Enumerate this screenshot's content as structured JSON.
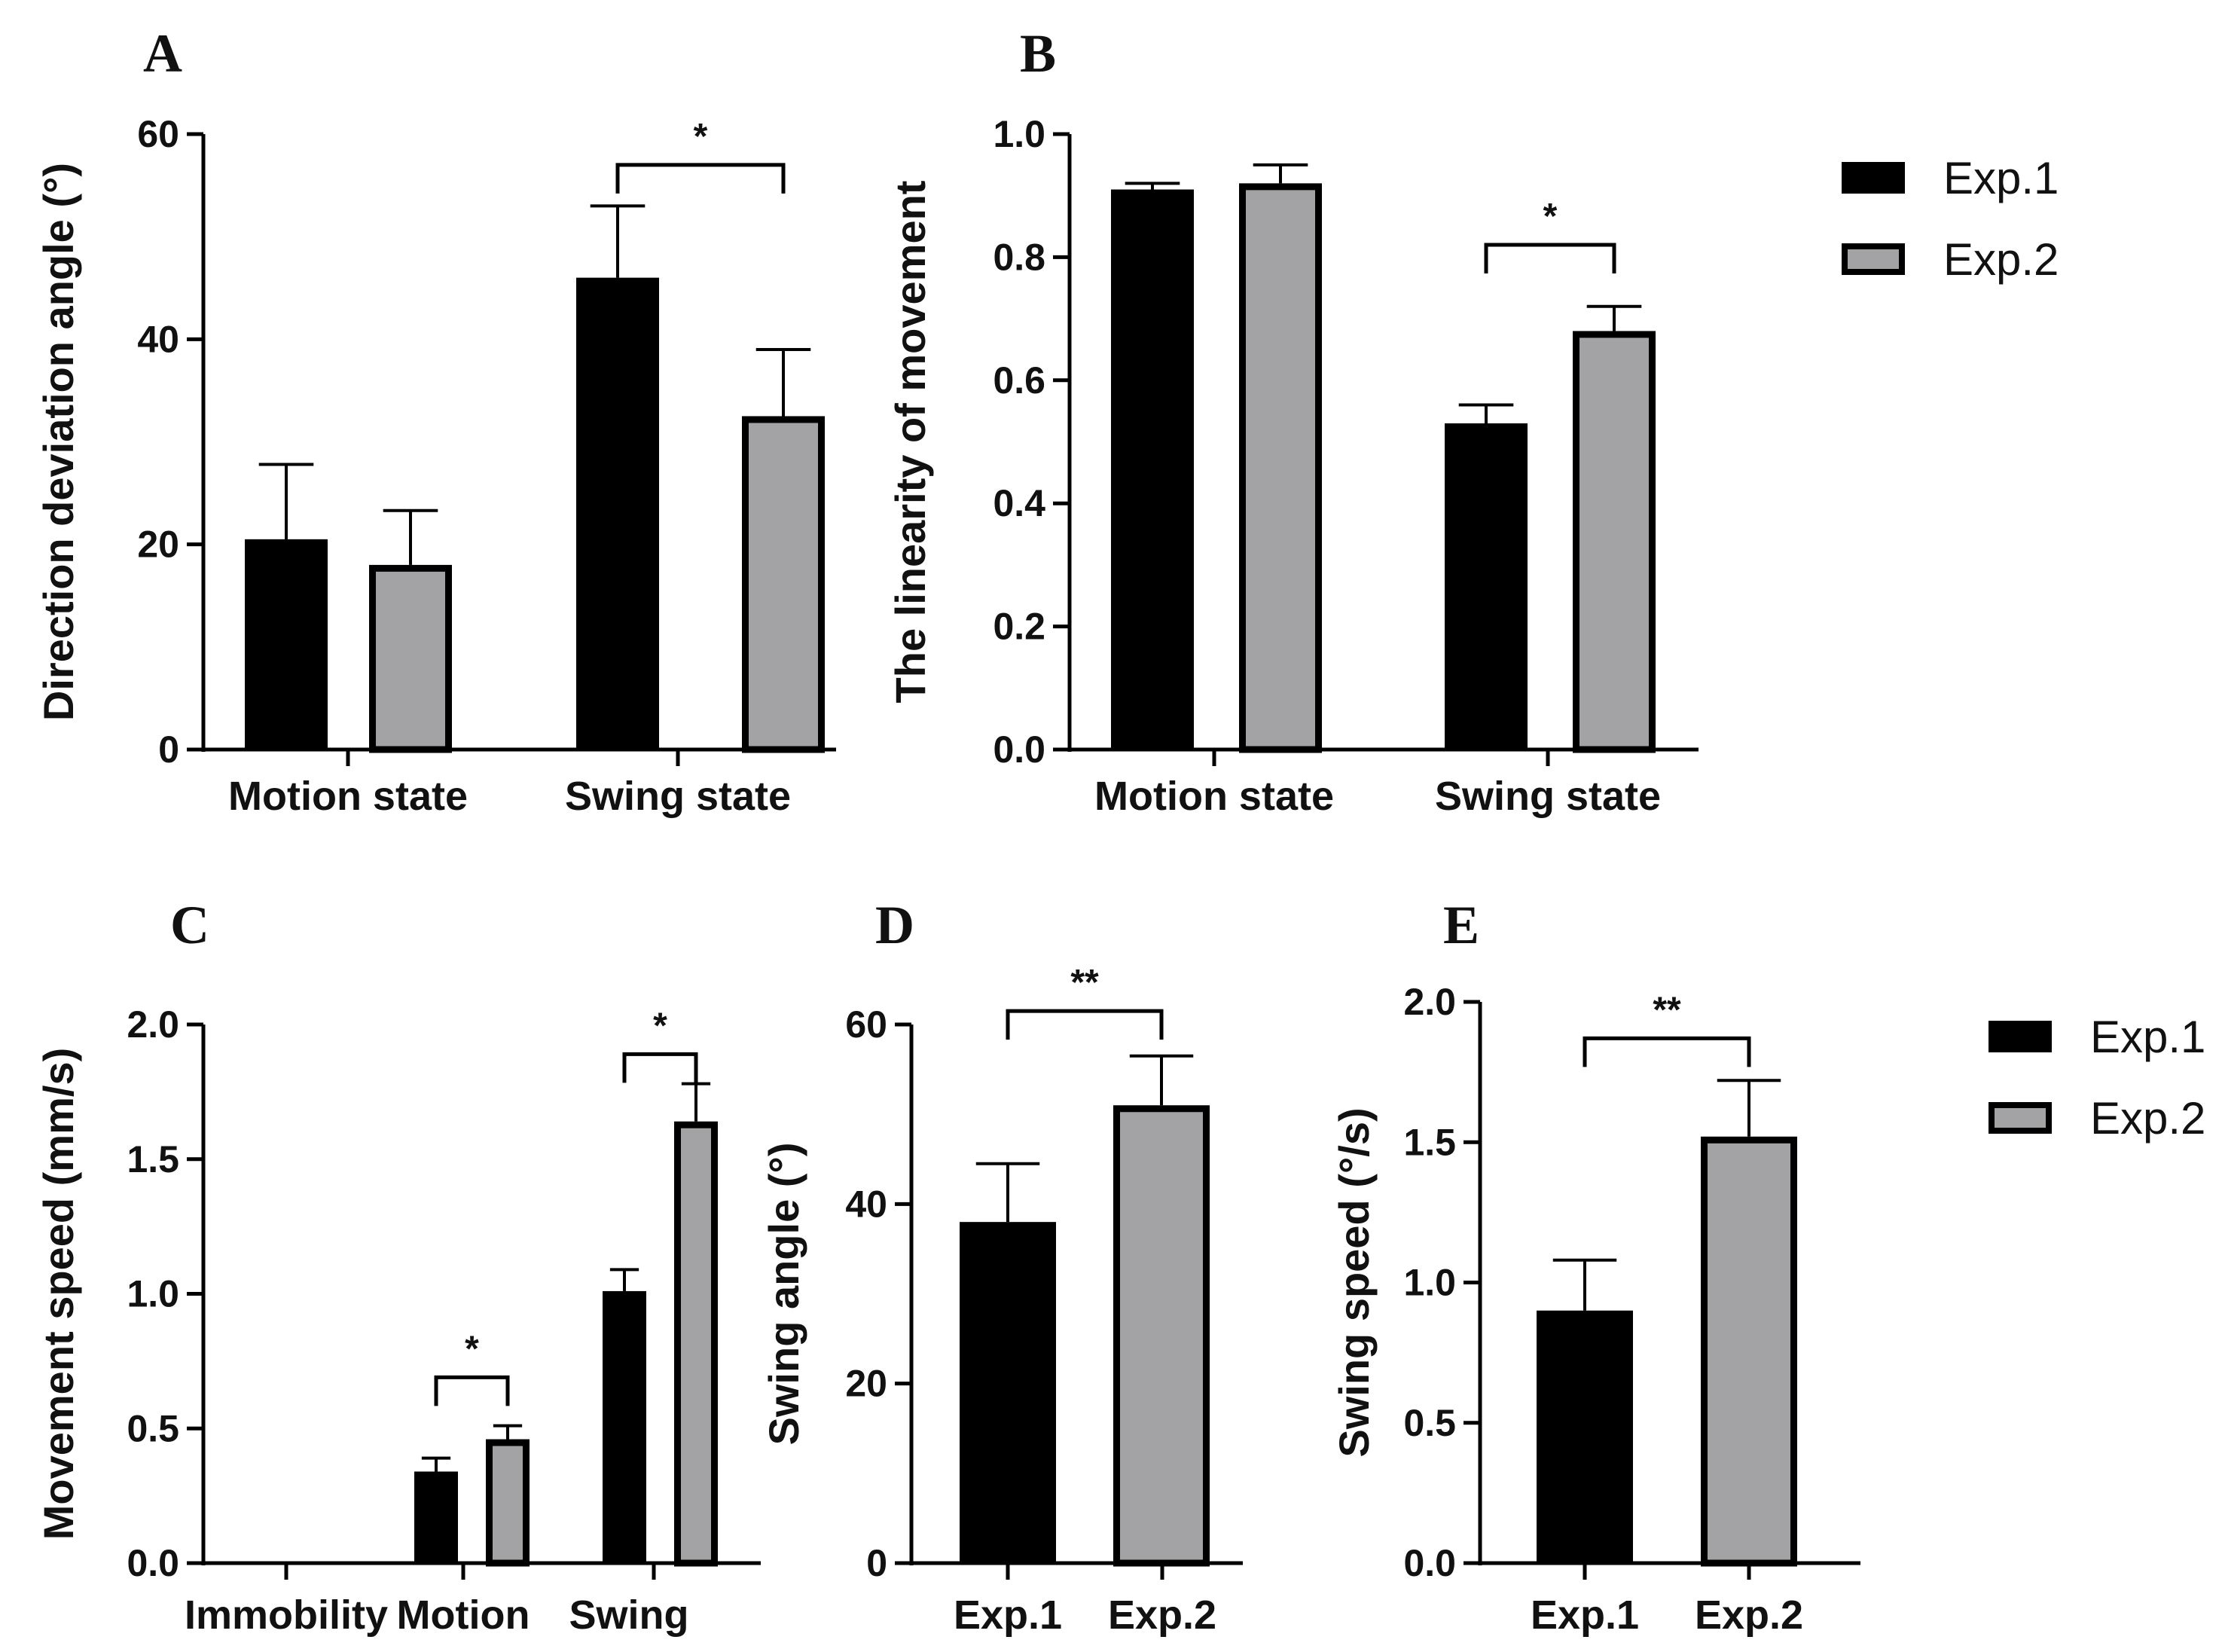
{
  "colors": {
    "exp1": "#000000",
    "exp2": "#a3a3a6",
    "stroke": "#000000"
  },
  "legend": [
    {
      "name": "Exp.1",
      "color_key": "exp1"
    },
    {
      "name": "Exp.2",
      "color_key": "exp2"
    }
  ],
  "chart_data": [
    {
      "id": "A",
      "type": "bar",
      "panel_label": "A",
      "ylabel": "Direction deviation angle (°)",
      "ylim": [
        0,
        60
      ],
      "yticks": [
        0,
        20,
        40,
        60
      ],
      "ytick_labels": [
        "0",
        "20",
        "40",
        "60"
      ],
      "categories": [
        "Motion state",
        "Swing state"
      ],
      "series": [
        {
          "name": "Exp.1",
          "values": [
            20.5,
            46
          ],
          "errors": [
            7.3,
            7
          ]
        },
        {
          "name": "Exp.2",
          "values": [
            18,
            32.5
          ],
          "errors": [
            5.3,
            6.5
          ]
        }
      ],
      "annotations": [
        {
          "text": "*",
          "category_index": 1,
          "level": 57
        }
      ]
    },
    {
      "id": "B",
      "type": "bar",
      "panel_label": "B",
      "ylabel": "The linearity of movement",
      "ylim": [
        0,
        1.0
      ],
      "yticks": [
        0,
        0.2,
        0.4,
        0.6,
        0.8,
        1.0
      ],
      "ytick_labels": [
        "0.0",
        "0.2",
        "0.4",
        "0.6",
        "0.8",
        "1.0"
      ],
      "categories": [
        "Motion state",
        "Swing state"
      ],
      "series": [
        {
          "name": "Exp.1",
          "values": [
            0.91,
            0.53
          ],
          "errors": [
            0.01,
            0.03
          ]
        },
        {
          "name": "Exp.2",
          "values": [
            0.92,
            0.68
          ],
          "errors": [
            0.03,
            0.04
          ]
        }
      ],
      "annotations": [
        {
          "text": "*",
          "category_index": 1,
          "level": 0.82
        }
      ]
    },
    {
      "id": "C",
      "type": "bar",
      "panel_label": "C",
      "ylabel": "Movement speed (mm/s)",
      "ylim": [
        0,
        2.0
      ],
      "yticks": [
        0,
        0.5,
        1.0,
        1.5,
        2.0
      ],
      "ytick_labels": [
        "0.0",
        "0.5",
        "1.0",
        "1.5",
        "2.0"
      ],
      "categories": [
        "Immobility",
        "Motion",
        "Swing"
      ],
      "series": [
        {
          "name": "Exp.1",
          "values": [
            0,
            0.34,
            1.01
          ],
          "errors": [
            0,
            0.05,
            0.08
          ]
        },
        {
          "name": "Exp.2",
          "values": [
            0,
            0.46,
            1.64
          ],
          "errors": [
            0,
            0.05,
            0.14
          ]
        }
      ],
      "annotations": [
        {
          "text": "*",
          "category_index": 1,
          "level": 0.69
        },
        {
          "text": "*",
          "category_index": 2,
          "level": 1.89
        }
      ]
    },
    {
      "id": "D",
      "type": "bar",
      "panel_label": "D",
      "ylabel": "Swing angle (°)",
      "ylim": [
        0,
        60
      ],
      "yticks": [
        0,
        20,
        40,
        60
      ],
      "ytick_labels": [
        "0",
        "20",
        "40",
        "60"
      ],
      "categories": [
        "Exp.1",
        "Exp.2"
      ],
      "series": [
        {
          "name": "Exp.1",
          "values": [
            38,
            null
          ],
          "errors": [
            6.5,
            null
          ]
        },
        {
          "name": "Exp.2",
          "values": [
            null,
            51
          ],
          "errors": [
            null,
            5.5
          ]
        }
      ],
      "annotations": [
        {
          "text": "**",
          "from_category": 0,
          "to_category": 1,
          "level": 61.5
        }
      ]
    },
    {
      "id": "E",
      "type": "bar",
      "panel_label": "E",
      "ylabel": "Swing speed (°/s)",
      "ylim": [
        0,
        2.0
      ],
      "yticks": [
        0,
        0.5,
        1.0,
        1.5,
        2.0
      ],
      "ytick_labels": [
        "0.0",
        "0.5",
        "1.0",
        "1.5",
        "2.0"
      ],
      "categories": [
        "Exp.1",
        "Exp.2"
      ],
      "series": [
        {
          "name": "Exp.1",
          "values": [
            0.9,
            null
          ],
          "errors": [
            0.18,
            null
          ]
        },
        {
          "name": "Exp.2",
          "values": [
            null,
            1.52
          ],
          "errors": [
            null,
            0.2
          ]
        }
      ],
      "annotations": [
        {
          "text": "**",
          "from_category": 0,
          "to_category": 1,
          "level": 1.87
        }
      ]
    }
  ]
}
